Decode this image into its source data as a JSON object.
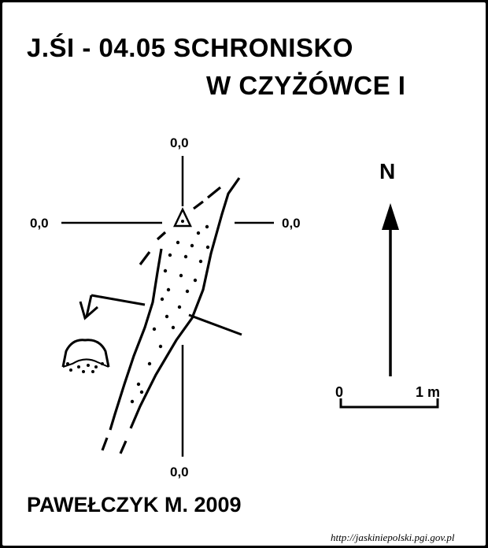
{
  "title": {
    "line1": "J.ŚI - 04.05  SCHRONISKO",
    "line2": "W CZYŻÓWCE I"
  },
  "coordinates": {
    "top": "0,0",
    "left": "0,0",
    "right": "0,0",
    "bottom": "0,0"
  },
  "north_label": "N",
  "scale": {
    "start": "0",
    "end": "1 m"
  },
  "author": "PAWEŁCZYK M. 2009",
  "source_url": "http://jaskiniepolski.pgi.gov.pl",
  "colors": {
    "ink": "#000000",
    "paper": "#ffffff",
    "border": "#000000"
  },
  "icons": {
    "entrance_marker": "triangle-with-dot",
    "north": "north-arrow"
  }
}
